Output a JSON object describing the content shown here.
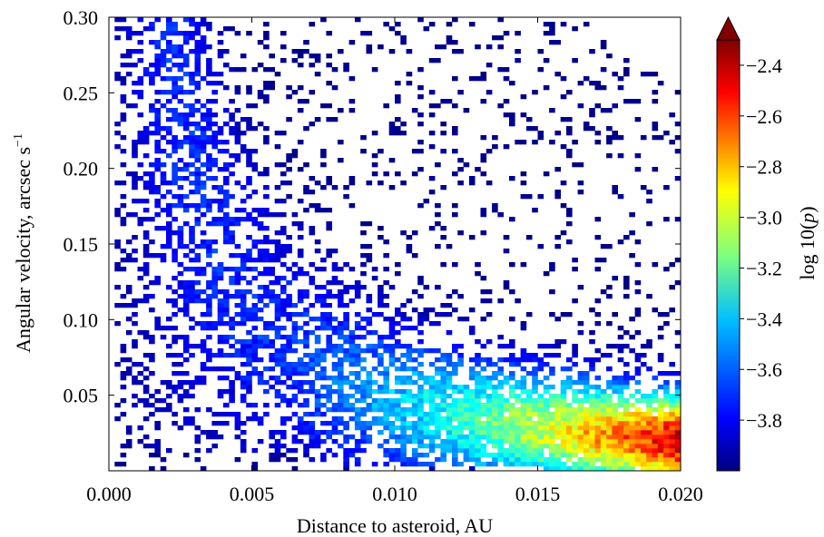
{
  "chart_data": {
    "type": "heatmap",
    "title": "",
    "xlabel": "Distance to asteroid, AU",
    "ylabel": "Angular velocity, arcsec s",
    "ylabel_sup": "−1",
    "xlim": [
      0.0,
      0.02
    ],
    "ylim": [
      0.0,
      0.3
    ],
    "x_ticks": [
      0.0,
      0.005,
      0.01,
      0.015,
      0.02
    ],
    "x_tick_labels": [
      "0.000",
      "0.005",
      "0.010",
      "0.015",
      "0.020"
    ],
    "y_ticks": [
      0.05,
      0.1,
      0.15,
      0.2,
      0.25,
      0.3
    ],
    "y_tick_labels": [
      "0.05",
      "0.10",
      "0.15",
      "0.20",
      "0.25",
      "0.30"
    ],
    "colorbar": {
      "label": "log 10(",
      "label_var": "p",
      "label_end": ")",
      "range": [
        -4.0,
        -2.3
      ],
      "extend": "max",
      "ticks": [
        -3.8,
        -3.6,
        -3.4,
        -3.2,
        -3.0,
        -2.8,
        -2.6,
        -2.4
      ],
      "tick_labels": [
        "−3.8",
        "−3.6",
        "−3.4",
        "−3.2",
        "−3.0",
        "−2.8",
        "−2.6",
        "−2.4"
      ],
      "colormap": "jet",
      "extend_color": "#800000"
    },
    "bins": {
      "nx": 100,
      "ny": 100
    },
    "density_model": {
      "description_of_values": "log10 probability per bin, in data units",
      "points": [
        {
          "x": 0.0195,
          "y": 0.013,
          "value": -2.35
        },
        {
          "x": 0.0185,
          "y": 0.018,
          "value": -2.5
        },
        {
          "x": 0.017,
          "y": 0.022,
          "value": -2.75
        },
        {
          "x": 0.015,
          "y": 0.028,
          "value": -3.0
        },
        {
          "x": 0.012,
          "y": 0.04,
          "value": -3.3
        },
        {
          "x": 0.009,
          "y": 0.06,
          "value": -3.5
        },
        {
          "x": 0.007,
          "y": 0.09,
          "value": -3.7
        },
        {
          "x": 0.005,
          "y": 0.15,
          "value": -3.9
        },
        {
          "x": 0.0035,
          "y": 0.23,
          "value": -3.98
        }
      ]
    }
  }
}
